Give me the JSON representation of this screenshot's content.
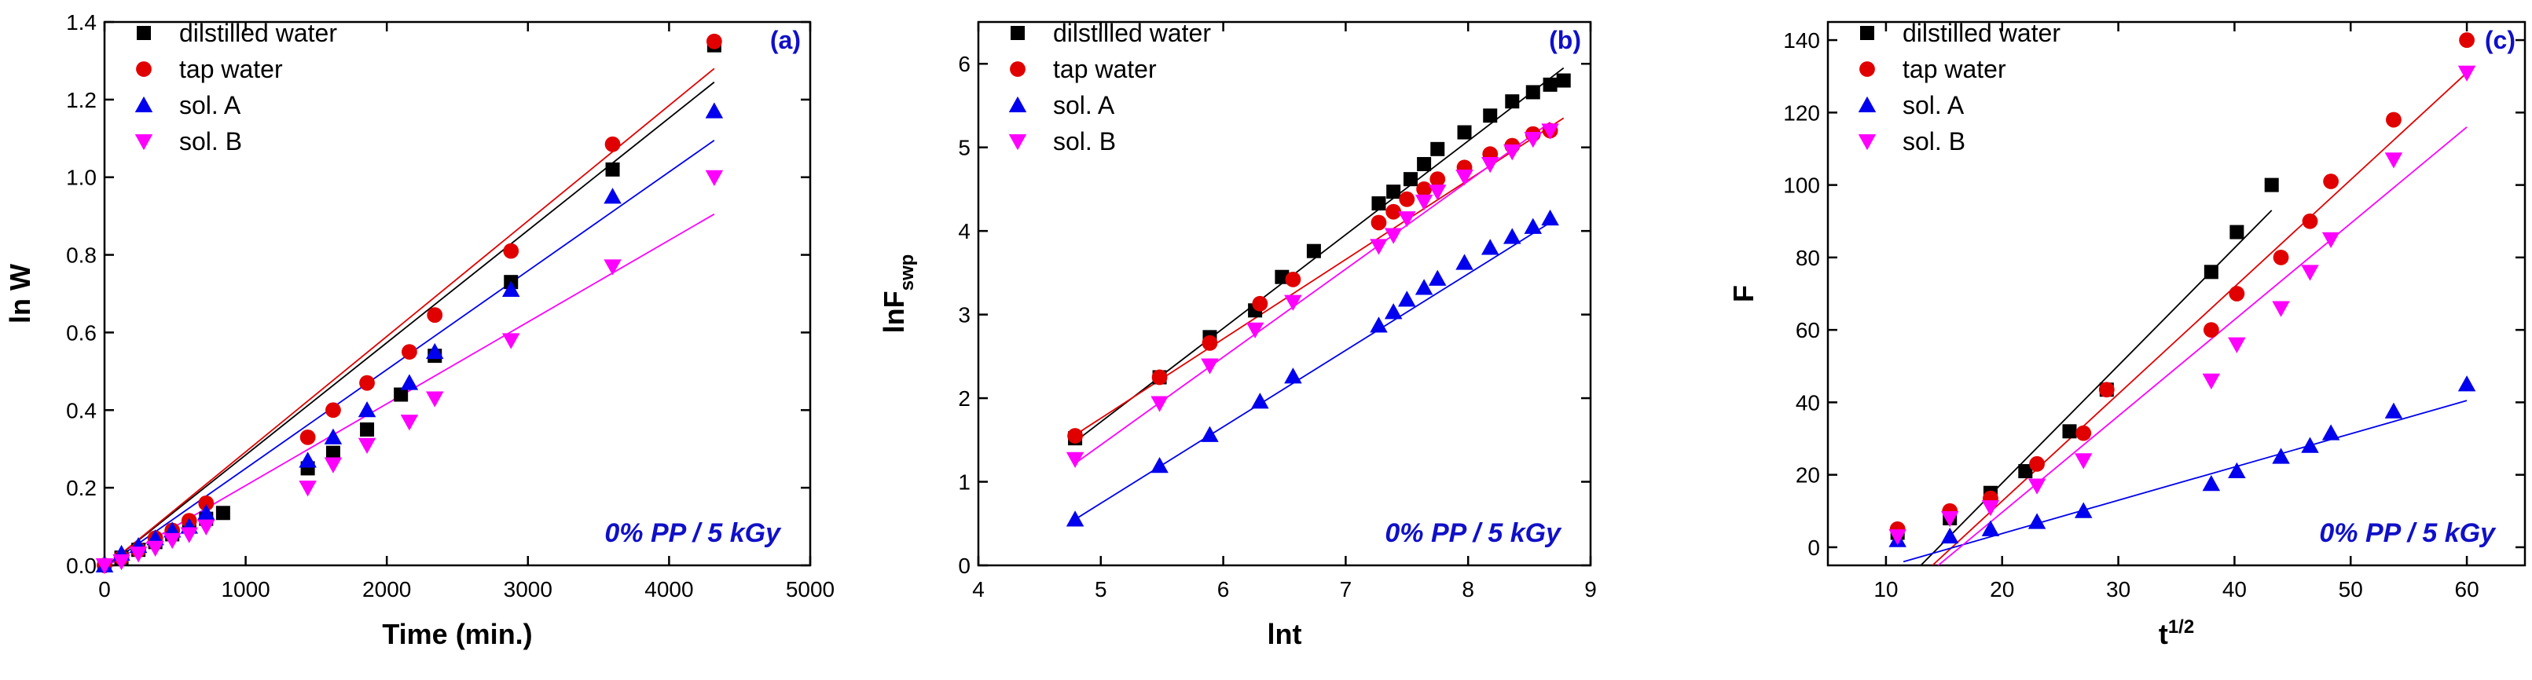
{
  "colors": {
    "dilstilled water": "#000000",
    "tap water": "#e10000",
    "sol. A": "#0000ee",
    "sol. B": "#ff00ff",
    "label": "#1010c8"
  },
  "chart_data": [
    {
      "type": "scatter",
      "panel_label": "(a)",
      "annotation": "0% PP / 5 kGy",
      "xlabel": "Time (min.)",
      "ylabel": "ln W",
      "xlim": [
        0,
        5000
      ],
      "ylim": [
        0,
        1.4
      ],
      "xticks": [
        0,
        1000,
        2000,
        3000,
        4000,
        5000
      ],
      "yticks": [
        0.0,
        0.2,
        0.4,
        0.6,
        0.8,
        1.0,
        1.2,
        1.4
      ],
      "xtick_labels": [
        "0",
        "1000",
        "2000",
        "3000",
        "4000",
        "5000"
      ],
      "ytick_labels": [
        "0.0",
        "0.2",
        "0.4",
        "0.6",
        "0.8",
        "1.0",
        "1.2",
        "1.4"
      ],
      "legend_position": "top-left",
      "series": [
        {
          "name": "dilstilled water",
          "marker": "square",
          "x": [
            0,
            120,
            240,
            360,
            480,
            600,
            720,
            840,
            1440,
            1620,
            1860,
            2100,
            2340,
            2880,
            3600,
            4320
          ],
          "y": [
            0,
            0.02,
            0.04,
            0.06,
            0.08,
            0.1,
            0.12,
            0.135,
            0.25,
            0.29,
            0.35,
            0.44,
            0.54,
            0.73,
            1.02,
            1.34
          ],
          "fit": [
            [
              0,
              -0.005
            ],
            [
              4320,
              1.245
            ]
          ]
        },
        {
          "name": "tap water",
          "marker": "circle",
          "x": [
            0,
            120,
            240,
            360,
            480,
            600,
            720,
            1440,
            1620,
            1860,
            2160,
            2340,
            2880,
            3600,
            4320
          ],
          "y": [
            0,
            0.02,
            0.04,
            0.07,
            0.09,
            0.115,
            0.16,
            0.33,
            0.4,
            0.47,
            0.55,
            0.645,
            0.81,
            1.085,
            1.35
          ],
          "fit": [
            [
              0,
              -0.005
            ],
            [
              4320,
              1.28
            ]
          ]
        },
        {
          "name": "sol. A",
          "marker": "triangle-up",
          "x": [
            0,
            120,
            240,
            360,
            480,
            600,
            720,
            1440,
            1620,
            1860,
            2160,
            2340,
            2880,
            3600,
            4320
          ],
          "y": [
            0,
            0.03,
            0.05,
            0.07,
            0.09,
            0.1,
            0.135,
            0.27,
            0.33,
            0.4,
            0.47,
            0.55,
            0.71,
            0.95,
            1.17
          ],
          "fit": [
            [
              0,
              -0.005
            ],
            [
              4320,
              1.095
            ]
          ]
        },
        {
          "name": "sol. B",
          "marker": "triangle-down",
          "x": [
            0,
            120,
            240,
            360,
            480,
            600,
            720,
            1440,
            1620,
            1860,
            2160,
            2340,
            2880,
            3600,
            4320
          ],
          "y": [
            0,
            0.01,
            0.03,
            0.045,
            0.065,
            0.08,
            0.1,
            0.2,
            0.26,
            0.31,
            0.37,
            0.43,
            0.58,
            0.77,
            1.0
          ],
          "fit": [
            [
              0,
              -0.005
            ],
            [
              4320,
              0.905
            ]
          ]
        }
      ]
    },
    {
      "type": "scatter",
      "panel_label": "(b)",
      "annotation": "0% PP / 5 kGy",
      "xlabel": "lnt",
      "ylabel": "lnF",
      "ylabel_sub": "swp",
      "xlim": [
        4,
        9
      ],
      "ylim": [
        0,
        6.5
      ],
      "xticks": [
        4,
        5,
        6,
        7,
        8,
        9
      ],
      "yticks": [
        0,
        1,
        2,
        3,
        4,
        5,
        6
      ],
      "xtick_labels": [
        "4",
        "5",
        "6",
        "7",
        "8",
        "9"
      ],
      "ytick_labels": [
        "0",
        "1",
        "2",
        "3",
        "4",
        "5",
        "6"
      ],
      "legend_position": "top-left",
      "series": [
        {
          "name": "dilstilled water",
          "marker": "square",
          "x": [
            4.79,
            5.48,
            5.89,
            6.26,
            6.48,
            6.74,
            7.27,
            7.39,
            7.53,
            7.64,
            7.75,
            7.97,
            8.18,
            8.36,
            8.53,
            8.67,
            8.78
          ],
          "y": [
            1.52,
            2.25,
            2.73,
            3.05,
            3.45,
            3.76,
            4.33,
            4.47,
            4.62,
            4.8,
            4.98,
            5.18,
            5.38,
            5.55,
            5.66,
            5.75,
            5.8
          ],
          "fit": [
            [
              4.79,
              1.48
            ],
            [
              8.78,
              5.95
            ]
          ]
        },
        {
          "name": "tap water",
          "marker": "circle",
          "x": [
            4.79,
            5.48,
            5.89,
            6.3,
            6.57,
            7.27,
            7.39,
            7.5,
            7.64,
            7.75,
            7.97,
            8.18,
            8.36,
            8.53,
            8.67
          ],
          "y": [
            1.55,
            2.25,
            2.66,
            3.13,
            3.42,
            4.1,
            4.23,
            4.38,
            4.5,
            4.62,
            4.76,
            4.92,
            5.02,
            5.16,
            5.2
          ],
          "fit": [
            [
              4.79,
              1.56
            ],
            [
              8.78,
              5.35
            ]
          ]
        },
        {
          "name": "sol. A",
          "marker": "triangle-up",
          "x": [
            4.79,
            5.48,
            5.89,
            6.3,
            6.57,
            7.27,
            7.39,
            7.5,
            7.64,
            7.75,
            7.97,
            8.18,
            8.36,
            8.53,
            8.67
          ],
          "y": [
            0.55,
            1.19,
            1.56,
            1.96,
            2.26,
            2.87,
            3.03,
            3.18,
            3.32,
            3.43,
            3.62,
            3.8,
            3.93,
            4.05,
            4.15
          ],
          "fit": [
            [
              4.79,
              0.55
            ],
            [
              8.67,
              4.1
            ]
          ]
        },
        {
          "name": "sol. B",
          "marker": "triangle-down",
          "x": [
            4.79,
            5.48,
            5.89,
            6.26,
            6.57,
            7.27,
            7.39,
            7.5,
            7.64,
            7.75,
            7.97,
            8.18,
            8.36,
            8.53,
            8.67
          ],
          "y": [
            1.27,
            1.94,
            2.39,
            2.82,
            3.15,
            3.82,
            3.95,
            4.15,
            4.35,
            4.47,
            4.65,
            4.8,
            4.95,
            5.1,
            5.2
          ],
          "fit": [
            [
              4.79,
              1.22
            ],
            [
              8.67,
              5.3
            ]
          ]
        }
      ]
    },
    {
      "type": "scatter",
      "panel_label": "(c)",
      "annotation": "0% PP / 5 kGy",
      "xlabel": "t",
      "xlabel_sup": "1/2",
      "ylabel": "F",
      "xlim": [
        5,
        65
      ],
      "ylim": [
        -5,
        145
      ],
      "xticks": [
        10,
        20,
        30,
        40,
        50,
        60
      ],
      "yticks": [
        0,
        20,
        40,
        60,
        80,
        100,
        120,
        140
      ],
      "xtick_labels": [
        "10",
        "20",
        "30",
        "40",
        "50",
        "60"
      ],
      "ytick_labels": [
        "0",
        "20",
        "40",
        "60",
        "80",
        "100",
        "120",
        "140"
      ],
      "legend_position": "top-left",
      "series": [
        {
          "name": "dilstilled water",
          "marker": "square",
          "x": [
            11,
            15.5,
            19,
            22,
            25.8,
            29,
            38,
            40.2,
            43.2
          ],
          "y": [
            4,
            8,
            15,
            21,
            32,
            43.5,
            76,
            87,
            100
          ],
          "fit": [
            [
              13,
              -5
            ],
            [
              43.2,
              93
            ]
          ]
        },
        {
          "name": "tap water",
          "marker": "circle",
          "x": [
            11,
            15.5,
            19,
            23,
            27,
            29,
            38,
            40.2,
            44,
            46.5,
            48.3,
            53.7,
            60
          ],
          "y": [
            5,
            10,
            13.5,
            23,
            31.5,
            43.5,
            60,
            70,
            80,
            90,
            101,
            118,
            140
          ],
          "fit": [
            [
              14,
              -5
            ],
            [
              60,
              131
            ]
          ]
        },
        {
          "name": "sol. A",
          "marker": "triangle-up",
          "x": [
            11,
            15.5,
            19,
            23,
            27,
            38,
            40.2,
            44,
            46.5,
            48.3,
            53.7,
            60
          ],
          "y": [
            2,
            3,
            5,
            7,
            10,
            17.5,
            21,
            25,
            28,
            31.5,
            37.5,
            45
          ],
          "fit": [
            [
              11.5,
              -4
            ],
            [
              60,
              40.5
            ]
          ]
        },
        {
          "name": "sol. B",
          "marker": "triangle-down",
          "x": [
            11,
            15.5,
            19,
            23,
            27,
            38,
            40.2,
            44,
            46.5,
            48.3,
            53.7,
            60
          ],
          "y": [
            3,
            8,
            11,
            17,
            24,
            46,
            56,
            66,
            76,
            85,
            107,
            131
          ],
          "fit": [
            [
              14.5,
              -5
            ],
            [
              60,
              116
            ]
          ]
        }
      ]
    }
  ]
}
